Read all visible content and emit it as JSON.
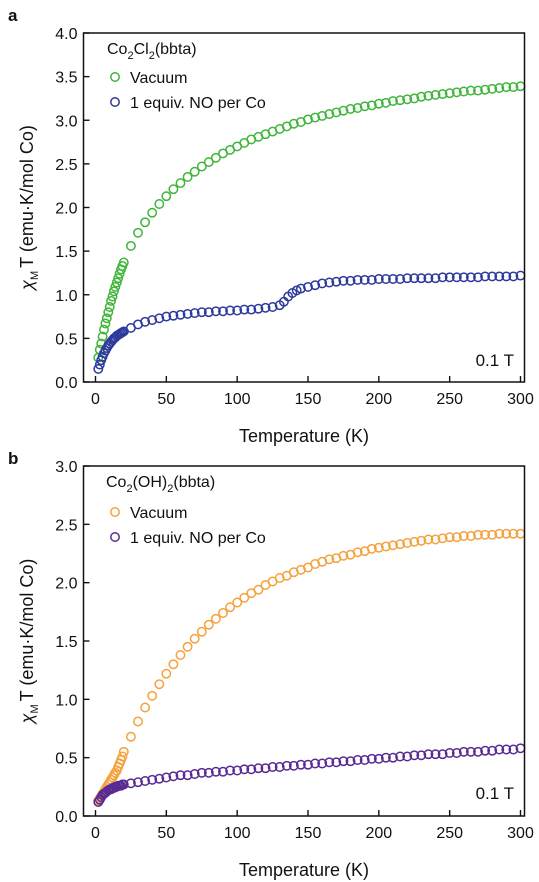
{
  "chart_data": [
    {
      "panel": "a",
      "type": "scatter",
      "xlabel": "Temperature (K)",
      "ylabel": {
        "symbol": "χ",
        "sub": "M",
        "rest": "T (emu·K/mol Co)"
      },
      "xlim": [
        0,
        300
      ],
      "ylim": [
        0,
        4.0
      ],
      "xticks": [
        0,
        50,
        100,
        150,
        200,
        250,
        300
      ],
      "yticks": [
        "0.0",
        "0.5",
        "1.0",
        "1.5",
        "2.0",
        "2.5",
        "3.0",
        "3.5",
        "4.0"
      ],
      "legend_title": {
        "pre": "Co",
        "s1": "2",
        "mid": "Cl",
        "s2": "2",
        "post": "(bbta)"
      },
      "legend_position": "top-left",
      "annotation": "0.1 T",
      "series": [
        {
          "name": "Vacuum",
          "color": "#3fb53a",
          "x": [
            2,
            3,
            4,
            5,
            6,
            7,
            8,
            9,
            10,
            11,
            12,
            13,
            14,
            15,
            16,
            17,
            18,
            19,
            20,
            25,
            30,
            35,
            40,
            45,
            50,
            55,
            60,
            65,
            70,
            75,
            80,
            85,
            90,
            95,
            100,
            105,
            110,
            115,
            120,
            125,
            130,
            135,
            140,
            145,
            150,
            155,
            160,
            165,
            170,
            175,
            180,
            185,
            190,
            195,
            200,
            205,
            210,
            215,
            220,
            225,
            230,
            235,
            240,
            245,
            250,
            255,
            260,
            265,
            270,
            275,
            280,
            285,
            290,
            295,
            300
          ],
          "y": [
            0.28,
            0.37,
            0.44,
            0.52,
            0.6,
            0.67,
            0.73,
            0.8,
            0.86,
            0.93,
            0.98,
            1.04,
            1.09,
            1.14,
            1.19,
            1.24,
            1.29,
            1.33,
            1.37,
            1.56,
            1.71,
            1.83,
            1.94,
            2.04,
            2.13,
            2.21,
            2.28,
            2.35,
            2.41,
            2.47,
            2.52,
            2.57,
            2.62,
            2.66,
            2.7,
            2.74,
            2.78,
            2.81,
            2.84,
            2.87,
            2.9,
            2.93,
            2.96,
            2.98,
            3.01,
            3.03,
            3.05,
            3.07,
            3.09,
            3.11,
            3.13,
            3.14,
            3.16,
            3.17,
            3.19,
            3.2,
            3.22,
            3.23,
            3.24,
            3.25,
            3.27,
            3.28,
            3.29,
            3.3,
            3.31,
            3.32,
            3.33,
            3.34,
            3.34,
            3.35,
            3.36,
            3.37,
            3.38,
            3.38,
            3.39
          ]
        },
        {
          "name": "1 equiv. NO per Co",
          "color": "#2d3a9c",
          "x": [
            2,
            3,
            4,
            5,
            6,
            7,
            8,
            9,
            10,
            11,
            12,
            13,
            14,
            15,
            16,
            17,
            18,
            19,
            20,
            25,
            30,
            35,
            40,
            45,
            50,
            55,
            60,
            65,
            70,
            75,
            80,
            85,
            90,
            95,
            100,
            105,
            110,
            115,
            120,
            125,
            130,
            133,
            136,
            139,
            142,
            145,
            150,
            155,
            160,
            165,
            170,
            175,
            180,
            185,
            190,
            195,
            200,
            205,
            210,
            215,
            220,
            225,
            230,
            235,
            240,
            245,
            250,
            255,
            260,
            265,
            270,
            275,
            280,
            285,
            290,
            295,
            300
          ],
          "y": [
            0.15,
            0.2,
            0.25,
            0.29,
            0.33,
            0.36,
            0.39,
            0.42,
            0.44,
            0.46,
            0.48,
            0.5,
            0.51,
            0.53,
            0.54,
            0.55,
            0.56,
            0.57,
            0.58,
            0.62,
            0.66,
            0.69,
            0.71,
            0.73,
            0.75,
            0.76,
            0.77,
            0.78,
            0.79,
            0.8,
            0.8,
            0.81,
            0.81,
            0.82,
            0.82,
            0.83,
            0.83,
            0.84,
            0.85,
            0.86,
            0.88,
            0.92,
            0.98,
            1.02,
            1.05,
            1.07,
            1.09,
            1.11,
            1.13,
            1.14,
            1.15,
            1.16,
            1.16,
            1.17,
            1.17,
            1.17,
            1.18,
            1.18,
            1.18,
            1.18,
            1.19,
            1.19,
            1.19,
            1.19,
            1.19,
            1.2,
            1.2,
            1.2,
            1.2,
            1.2,
            1.2,
            1.21,
            1.21,
            1.21,
            1.21,
            1.21,
            1.22
          ]
        }
      ]
    },
    {
      "panel": "b",
      "type": "scatter",
      "xlabel": "Temperature (K)",
      "ylabel": {
        "symbol": "χ",
        "sub": "M",
        "rest": "T (emu·K/mol Co)"
      },
      "xlim": [
        0,
        300
      ],
      "ylim": [
        0,
        3.0
      ],
      "xticks": [
        0,
        50,
        100,
        150,
        200,
        250,
        300
      ],
      "yticks": [
        "0.0",
        "0.5",
        "1.0",
        "1.5",
        "2.0",
        "2.5",
        "3.0"
      ],
      "legend_title": {
        "pre": "Co",
        "s1": "2",
        "mid": "(OH)",
        "s2": "2",
        "post": "(bbta)"
      },
      "legend_position": "top-left",
      "annotation": "0.1 T",
      "series": [
        {
          "name": "Vacuum",
          "color": "#f5a13c",
          "x": [
            2,
            3,
            4,
            5,
            6,
            7,
            8,
            9,
            10,
            11,
            12,
            13,
            14,
            15,
            16,
            17,
            18,
            19,
            20,
            25,
            30,
            35,
            40,
            45,
            50,
            55,
            60,
            65,
            70,
            75,
            80,
            85,
            90,
            95,
            100,
            105,
            110,
            115,
            120,
            125,
            130,
            135,
            140,
            145,
            150,
            155,
            160,
            165,
            170,
            175,
            180,
            185,
            190,
            195,
            200,
            205,
            210,
            215,
            220,
            225,
            230,
            235,
            240,
            245,
            250,
            255,
            260,
            265,
            270,
            275,
            280,
            285,
            290,
            295,
            300
          ],
          "y": [
            0.13,
            0.15,
            0.17,
            0.19,
            0.21,
            0.23,
            0.25,
            0.27,
            0.29,
            0.31,
            0.33,
            0.35,
            0.37,
            0.39,
            0.42,
            0.45,
            0.48,
            0.51,
            0.55,
            0.68,
            0.81,
            0.93,
            1.03,
            1.13,
            1.22,
            1.3,
            1.38,
            1.45,
            1.52,
            1.58,
            1.64,
            1.69,
            1.74,
            1.79,
            1.83,
            1.87,
            1.91,
            1.94,
            1.98,
            2.01,
            2.04,
            2.06,
            2.09,
            2.11,
            2.13,
            2.16,
            2.18,
            2.2,
            2.21,
            2.23,
            2.24,
            2.26,
            2.27,
            2.29,
            2.3,
            2.31,
            2.32,
            2.33,
            2.34,
            2.35,
            2.36,
            2.37,
            2.37,
            2.38,
            2.39,
            2.39,
            2.4,
            2.4,
            2.41,
            2.41,
            2.41,
            2.42,
            2.42,
            2.42,
            2.42
          ]
        },
        {
          "name": "1 equiv. NO per Co",
          "color": "#5a2a94",
          "x": [
            2,
            3,
            4,
            5,
            6,
            7,
            8,
            9,
            10,
            11,
            12,
            13,
            14,
            15,
            16,
            17,
            18,
            19,
            20,
            25,
            30,
            35,
            40,
            45,
            50,
            55,
            60,
            65,
            70,
            75,
            80,
            85,
            90,
            95,
            100,
            105,
            110,
            115,
            120,
            125,
            130,
            135,
            140,
            145,
            150,
            155,
            160,
            165,
            170,
            175,
            180,
            185,
            190,
            195,
            200,
            205,
            210,
            215,
            220,
            225,
            230,
            235,
            240,
            245,
            250,
            255,
            260,
            265,
            270,
            275,
            280,
            285,
            290,
            295,
            300
          ],
          "y": [
            0.12,
            0.14,
            0.16,
            0.18,
            0.19,
            0.2,
            0.21,
            0.22,
            0.23,
            0.23,
            0.24,
            0.24,
            0.25,
            0.25,
            0.26,
            0.26,
            0.26,
            0.27,
            0.27,
            0.28,
            0.29,
            0.3,
            0.31,
            0.32,
            0.33,
            0.34,
            0.35,
            0.35,
            0.36,
            0.37,
            0.37,
            0.38,
            0.38,
            0.39,
            0.39,
            0.4,
            0.4,
            0.41,
            0.41,
            0.42,
            0.42,
            0.43,
            0.43,
            0.44,
            0.44,
            0.45,
            0.45,
            0.46,
            0.46,
            0.47,
            0.47,
            0.48,
            0.48,
            0.49,
            0.49,
            0.5,
            0.5,
            0.51,
            0.51,
            0.52,
            0.52,
            0.53,
            0.53,
            0.53,
            0.54,
            0.54,
            0.55,
            0.55,
            0.55,
            0.56,
            0.56,
            0.57,
            0.57,
            0.57,
            0.58
          ]
        }
      ]
    }
  ]
}
